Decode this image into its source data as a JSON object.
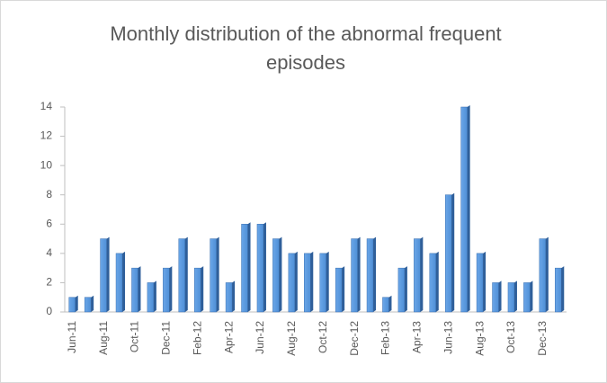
{
  "chart_data": {
    "type": "bar",
    "title": "Monthly distribution of the abnormal frequent episodes",
    "categories": [
      "Jun-11",
      null,
      "Aug-11",
      null,
      "Oct-11",
      null,
      "Dec-11",
      null,
      "Feb-12",
      null,
      "Apr-12",
      null,
      "Jun-12",
      null,
      "Aug-12",
      null,
      "Oct-12",
      null,
      "Dec-12",
      null,
      "Feb-13",
      null,
      "Apr-13",
      null,
      "Jun-13",
      null,
      "Aug-13",
      null,
      "Oct-13",
      null,
      "Dec-13",
      null
    ],
    "values": [
      1,
      1,
      5,
      4,
      3,
      2,
      3,
      5,
      3,
      5,
      2,
      6,
      6,
      5,
      4,
      4,
      4,
      3,
      5,
      5,
      1,
      3,
      5,
      4,
      8,
      14,
      4,
      2,
      2,
      2,
      5,
      3
    ],
    "color": "#4f8fd6",
    "ylim": [
      0,
      14
    ],
    "yticks": [
      0,
      2,
      4,
      6,
      8,
      10,
      12,
      14
    ],
    "grid": false
  }
}
